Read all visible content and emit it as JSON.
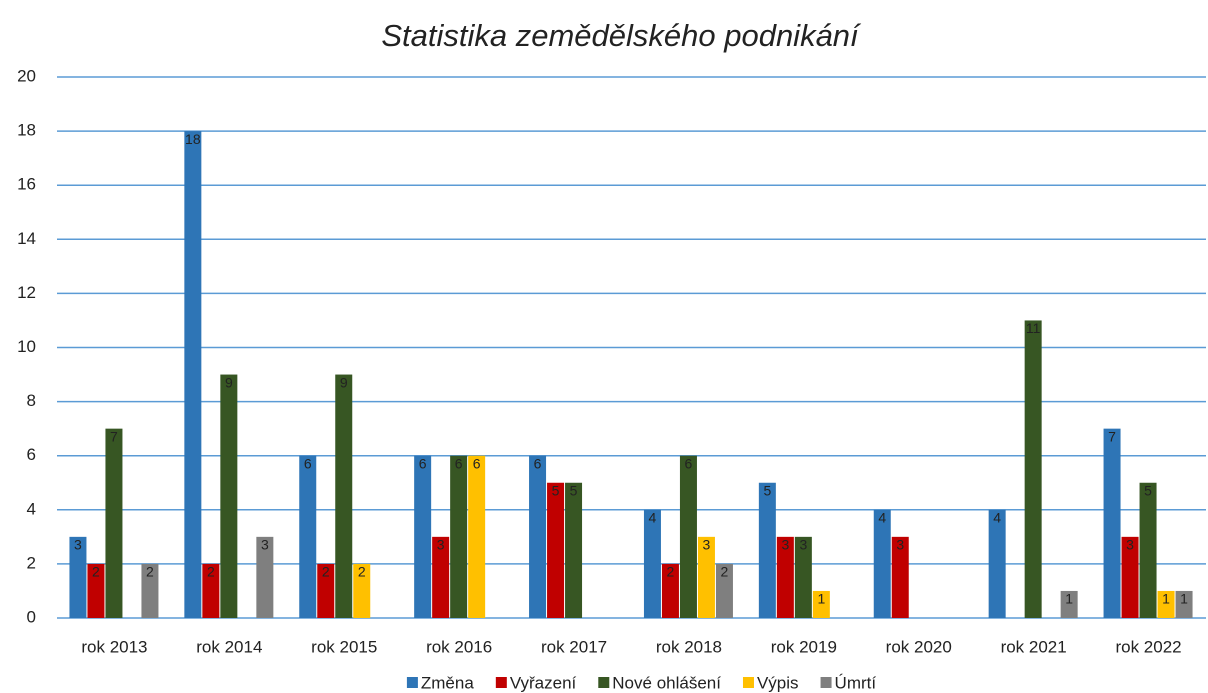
{
  "chart_data": {
    "type": "bar",
    "title": "Statistika zemědělského podnikání",
    "categories": [
      "rok 2013",
      "rok 2014",
      "rok 2015",
      "rok 2016",
      "rok 2017",
      "rok 2018",
      "rok 2019",
      "rok 2020",
      "rok 2021",
      "rok 2022"
    ],
    "series": [
      {
        "name": "Změna",
        "color": "#2e75b6",
        "values": [
          3,
          18,
          6,
          6,
          6,
          4,
          5,
          4,
          4,
          7
        ]
      },
      {
        "name": "Vyřazení",
        "color": "#c00000",
        "values": [
          2,
          2,
          2,
          3,
          5,
          2,
          3,
          3,
          null,
          3
        ]
      },
      {
        "name": "Nové ohlášení",
        "color": "#375623",
        "values": [
          7,
          9,
          9,
          6,
          5,
          6,
          3,
          null,
          11,
          5
        ]
      },
      {
        "name": "Výpis",
        "color": "#ffc000",
        "values": [
          null,
          null,
          2,
          6,
          null,
          3,
          1,
          null,
          null,
          1
        ]
      },
      {
        "name": "Úmrtí",
        "color": "#7f7f7f",
        "values": [
          2,
          3,
          null,
          null,
          null,
          2,
          null,
          null,
          1,
          1
        ]
      }
    ],
    "ylim": [
      0,
      20
    ],
    "yticks": [
      0,
      2,
      4,
      6,
      8,
      10,
      12,
      14,
      16,
      18,
      20
    ],
    "grid": true,
    "legend": "bottom"
  }
}
